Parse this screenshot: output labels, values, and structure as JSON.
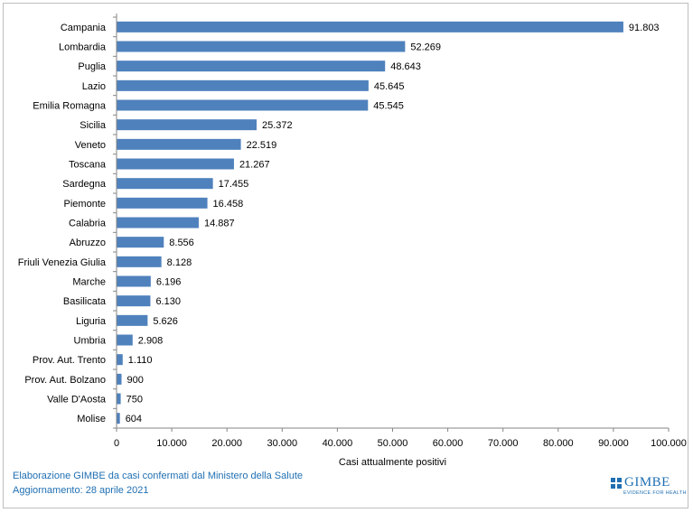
{
  "chart_data": {
    "type": "bar",
    "orientation": "horizontal",
    "categories": [
      "Campania",
      "Lombardia",
      "Puglia",
      "Lazio",
      "Emilia Romagna",
      "Sicilia",
      "Veneto",
      "Toscana",
      "Sardegna",
      "Piemonte",
      "Calabria",
      "Abruzzo",
      "Friuli Venezia Giulia",
      "Marche",
      "Basilicata",
      "Liguria",
      "Umbria",
      "Prov. Aut. Trento",
      "Prov. Aut. Bolzano",
      "Valle D'Aosta",
      "Molise"
    ],
    "values": [
      91803,
      52269,
      48643,
      45645,
      45545,
      25372,
      22519,
      21267,
      17455,
      16458,
      14887,
      8556,
      8128,
      6196,
      6130,
      5626,
      2908,
      1110,
      900,
      750,
      604
    ],
    "value_labels": [
      "91.803",
      "52.269",
      "48.643",
      "45.645",
      "45.545",
      "25.372",
      "22.519",
      "21.267",
      "17.455",
      "16.458",
      "14.887",
      "8.556",
      "8.128",
      "6.196",
      "6.130",
      "5.626",
      "2.908",
      "1.110",
      "900",
      "750",
      "604"
    ],
    "xlabel": "Casi attualmente positivi",
    "xlim": [
      0,
      100000
    ],
    "x_ticks": [
      0,
      10000,
      20000,
      30000,
      40000,
      50000,
      60000,
      70000,
      80000,
      90000,
      100000
    ],
    "x_tick_labels": [
      "0",
      "10.000",
      "20.000",
      "30.000",
      "40.000",
      "50.000",
      "60.000",
      "70.000",
      "80.000",
      "90.000",
      "100.000"
    ],
    "bar_color": "#4f81bd",
    "grid": false,
    "legend": "none"
  },
  "footnote": {
    "line1": "Elaborazione GIMBE da casi confermati dal Ministero della Salute",
    "line2": "Aggiornamento: 28 aprile 2021"
  },
  "logo": {
    "name": "GIMBE",
    "tagline": "EVIDENCE FOR HEALTH",
    "color": "#1f6fb2"
  }
}
